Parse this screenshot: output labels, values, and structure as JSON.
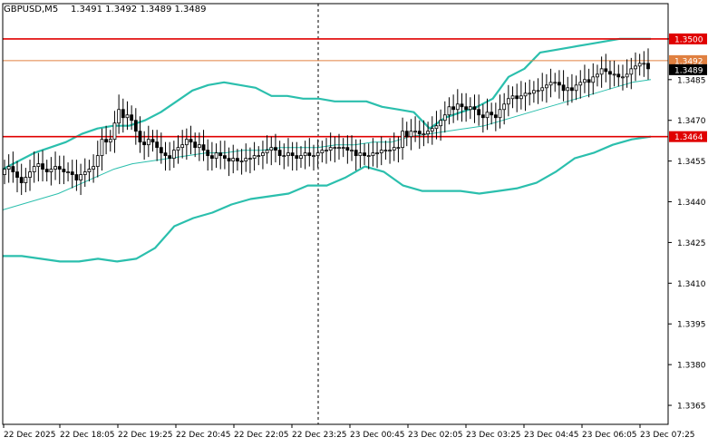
{
  "header": {
    "symbol": "GBPUSD,M5",
    "ohlc": "1.3491 1.3492 1.3489 1.3489"
  },
  "colors": {
    "background": "#ffffff",
    "candle": "#000000",
    "bollinger": "#2bbfad",
    "moving_average": "#2bbfad",
    "level_line": "#e00000",
    "bid_line": "#e08040",
    "last_price_tag": "#000000",
    "grid_separator": "#000000"
  },
  "chart_data": {
    "type": "candlestick",
    "title": "GBPUSD,M5",
    "ylim": [
      1.3358,
      1.3513
    ],
    "y_ticks": [
      "1.3500",
      "1.3485",
      "1.3470",
      "1.3455",
      "1.3440",
      "1.3425",
      "1.3410",
      "1.3395",
      "1.3380",
      "1.3365"
    ],
    "x_ticks": [
      "22 Dec 2025",
      "22 Dec 18:05",
      "22 Dec 19:25",
      "22 Dec 20:45",
      "22 Dec 22:05",
      "22 Dec 23:25",
      "23 Dec 00:45",
      "23 Dec 02:05",
      "23 Dec 03:25",
      "23 Dec 04:45",
      "23 Dec 06:05",
      "23 Dec 07:25"
    ],
    "close": [
      1.3452,
      1.3453,
      1.3451,
      1.3449,
      1.3447,
      1.3449,
      1.3451,
      1.3453,
      1.3454,
      1.3452,
      1.3451,
      1.3452,
      1.3453,
      1.3452,
      1.3451,
      1.3451,
      1.345,
      1.3448,
      1.345,
      1.3451,
      1.3452,
      1.3453,
      1.3457,
      1.3463,
      1.3462,
      1.3463,
      1.3469,
      1.3474,
      1.3471,
      1.3472,
      1.347,
      1.3466,
      1.3462,
      1.3461,
      1.3463,
      1.3462,
      1.346,
      1.3458,
      1.3457,
      1.3456,
      1.3459,
      1.346,
      1.3461,
      1.3463,
      1.3462,
      1.346,
      1.3461,
      1.3459,
      1.3457,
      1.3456,
      1.3458,
      1.3457,
      1.3456,
      1.3455,
      1.3456,
      1.3455,
      1.3455,
      1.3456,
      1.3456,
      1.3457,
      1.3457,
      1.3458,
      1.3459,
      1.346,
      1.3459,
      1.3457,
      1.3457,
      1.3458,
      1.3457,
      1.3456,
      1.3457,
      1.3458,
      1.3457,
      1.3457,
      1.3458,
      1.3459,
      1.3459,
      1.346,
      1.346,
      1.346,
      1.346,
      1.3459,
      1.3459,
      1.3457,
      1.3458,
      1.3457,
      1.3457,
      1.3458,
      1.3458,
      1.3459,
      1.3459,
      1.3459,
      1.346,
      1.346,
      1.3466,
      1.3464,
      1.3466,
      1.3466,
      1.3465,
      1.3465,
      1.3466,
      1.3467,
      1.3468,
      1.347,
      1.3472,
      1.3475,
      1.3474,
      1.3476,
      1.3475,
      1.3474,
      1.3475,
      1.3474,
      1.3472,
      1.3471,
      1.3473,
      1.3472,
      1.3471,
      1.3474,
      1.3476,
      1.3478,
      1.3479,
      1.3478,
      1.3479,
      1.348,
      1.348,
      1.3481,
      1.3481,
      1.3482,
      1.3483,
      1.3484,
      1.3484,
      1.3483,
      1.3481,
      1.3482,
      1.3481,
      1.3483,
      1.3484,
      1.3485,
      1.3484,
      1.3486,
      1.3487,
      1.3489,
      1.3488,
      1.3487,
      1.3487,
      1.3486,
      1.3486,
      1.3487,
      1.3489,
      1.349,
      1.3491,
      1.3491,
      1.3489
    ],
    "bollinger_upper": [
      1.3452,
      1.3455,
      1.3458,
      1.346,
      1.3462,
      1.3465,
      1.3467,
      1.3468,
      1.3468,
      1.347,
      1.3473,
      1.3477,
      1.3481,
      1.3483,
      1.3484,
      1.3483,
      1.3482,
      1.3479,
      1.3479,
      1.3478,
      1.3478,
      1.3477,
      1.3477,
      1.3477,
      1.3475,
      1.3474,
      1.3473,
      1.3467,
      1.3471,
      1.3473,
      1.3475,
      1.3478,
      1.3486,
      1.3489,
      1.3495,
      1.3496,
      1.3497,
      1.3498,
      1.3499,
      1.35,
      1.35,
      1.35
    ],
    "bollinger_middle": [
      1.3437,
      1.3439,
      1.3441,
      1.3443,
      1.3446,
      1.3449,
      1.3452,
      1.3454,
      1.3455,
      1.3456,
      1.3457,
      1.3458,
      1.3458,
      1.3459,
      1.3459,
      1.346,
      1.346,
      1.346,
      1.3461,
      1.3461,
      1.3462,
      1.3462,
      1.3464,
      1.3465,
      1.3466,
      1.3467,
      1.3468,
      1.347,
      1.3472,
      1.3474,
      1.3476,
      1.3478,
      1.348,
      1.3482,
      1.3484,
      1.3485
    ],
    "bollinger_lower": [
      1.342,
      1.342,
      1.3419,
      1.3418,
      1.3418,
      1.3419,
      1.3418,
      1.3419,
      1.3423,
      1.3431,
      1.3434,
      1.3436,
      1.3439,
      1.3441,
      1.3442,
      1.3443,
      1.3446,
      1.3446,
      1.3449,
      1.3453,
      1.3451,
      1.3446,
      1.3444,
      1.3444,
      1.3444,
      1.3443,
      1.3444,
      1.3445,
      1.3447,
      1.3451,
      1.3456,
      1.3458,
      1.3461,
      1.3463,
      1.3464
    ],
    "levels": [
      {
        "label": "1.3500",
        "value": 1.35
      },
      {
        "label": "1.3464",
        "value": 1.3464
      }
    ],
    "bid_price": {
      "label": "1.3492",
      "value": 1.3492
    },
    "last_price": {
      "label": "1.3489",
      "value": 1.3489
    },
    "period_separator_time": "23 Dec 00:00"
  }
}
